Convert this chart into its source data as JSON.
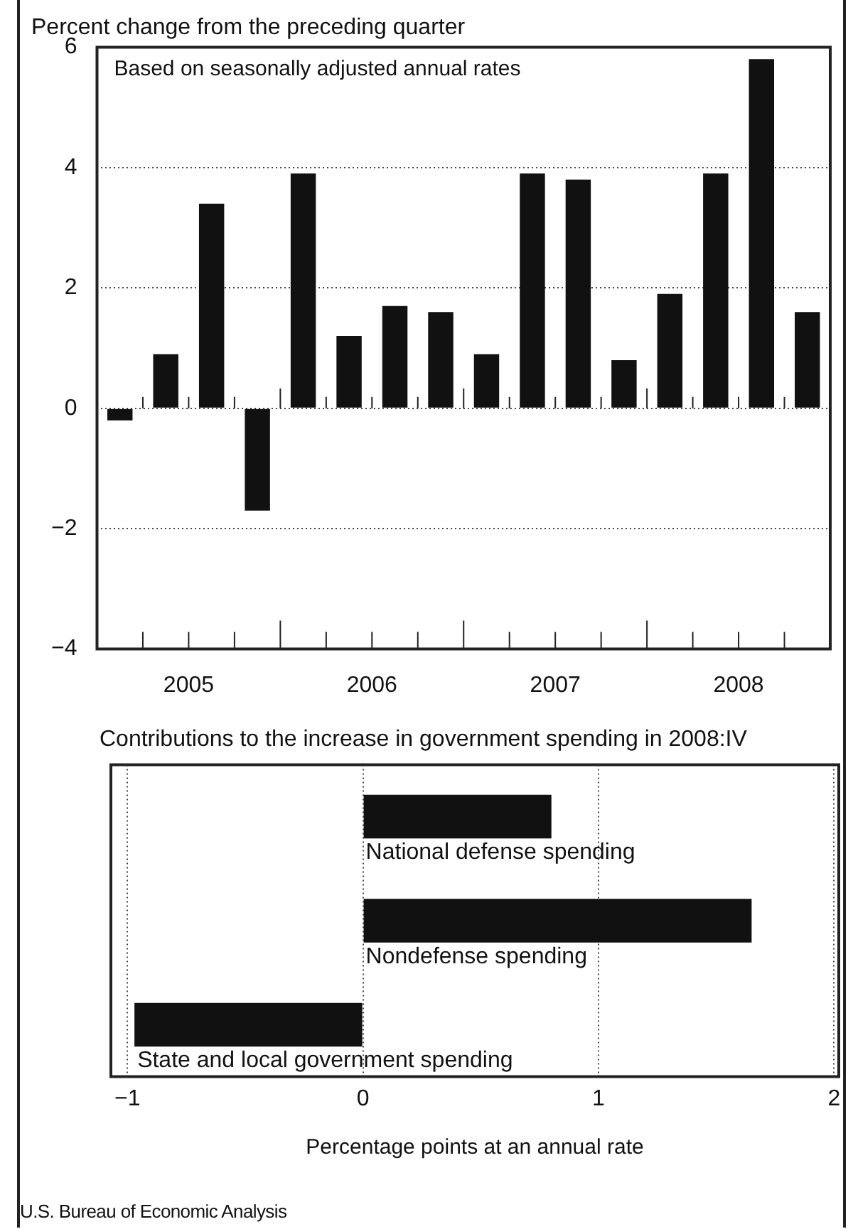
{
  "chart_data": [
    {
      "type": "bar",
      "title": "Percent change from the preceding quarter",
      "annotations": [
        "Based on seasonally adjusted annual rates"
      ],
      "categories": [
        null,
        "2005",
        null,
        null,
        null,
        "2006",
        null,
        null,
        null,
        "2007",
        null,
        null,
        null,
        "2008",
        null,
        null
      ],
      "values": [
        -0.2,
        0.9,
        3.4,
        -1.7,
        3.9,
        1.2,
        1.7,
        1.6,
        0.9,
        3.9,
        3.8,
        0.8,
        1.9,
        3.9,
        5.8,
        1.6
      ],
      "color": "#111111",
      "ylim": [
        -4,
        6
      ],
      "yticks": [
        {
          "value": -4,
          "label": "−4"
        },
        {
          "value": -2,
          "label": "−2"
        },
        0,
        2,
        4,
        6
      ],
      "grid": "y"
    },
    {
      "type": "bar",
      "orientation": "horizontal",
      "title": "Contributions to the increase in government spending in 2008:IV",
      "xlabel": "Percentage points at an annual rate",
      "annotations": [
        "U.S. Bureau of Economic Analysis"
      ],
      "categories": [
        "National defense spending",
        "Nondefense spending",
        "State and local government spending"
      ],
      "values": [
        0.8,
        1.65,
        -0.97
      ],
      "color": "#111111",
      "xlim": [
        -1.07,
        2.02
      ],
      "xticks": [
        {
          "value": -1,
          "label": "−1"
        },
        0,
        1,
        2
      ],
      "grid": "x"
    }
  ]
}
